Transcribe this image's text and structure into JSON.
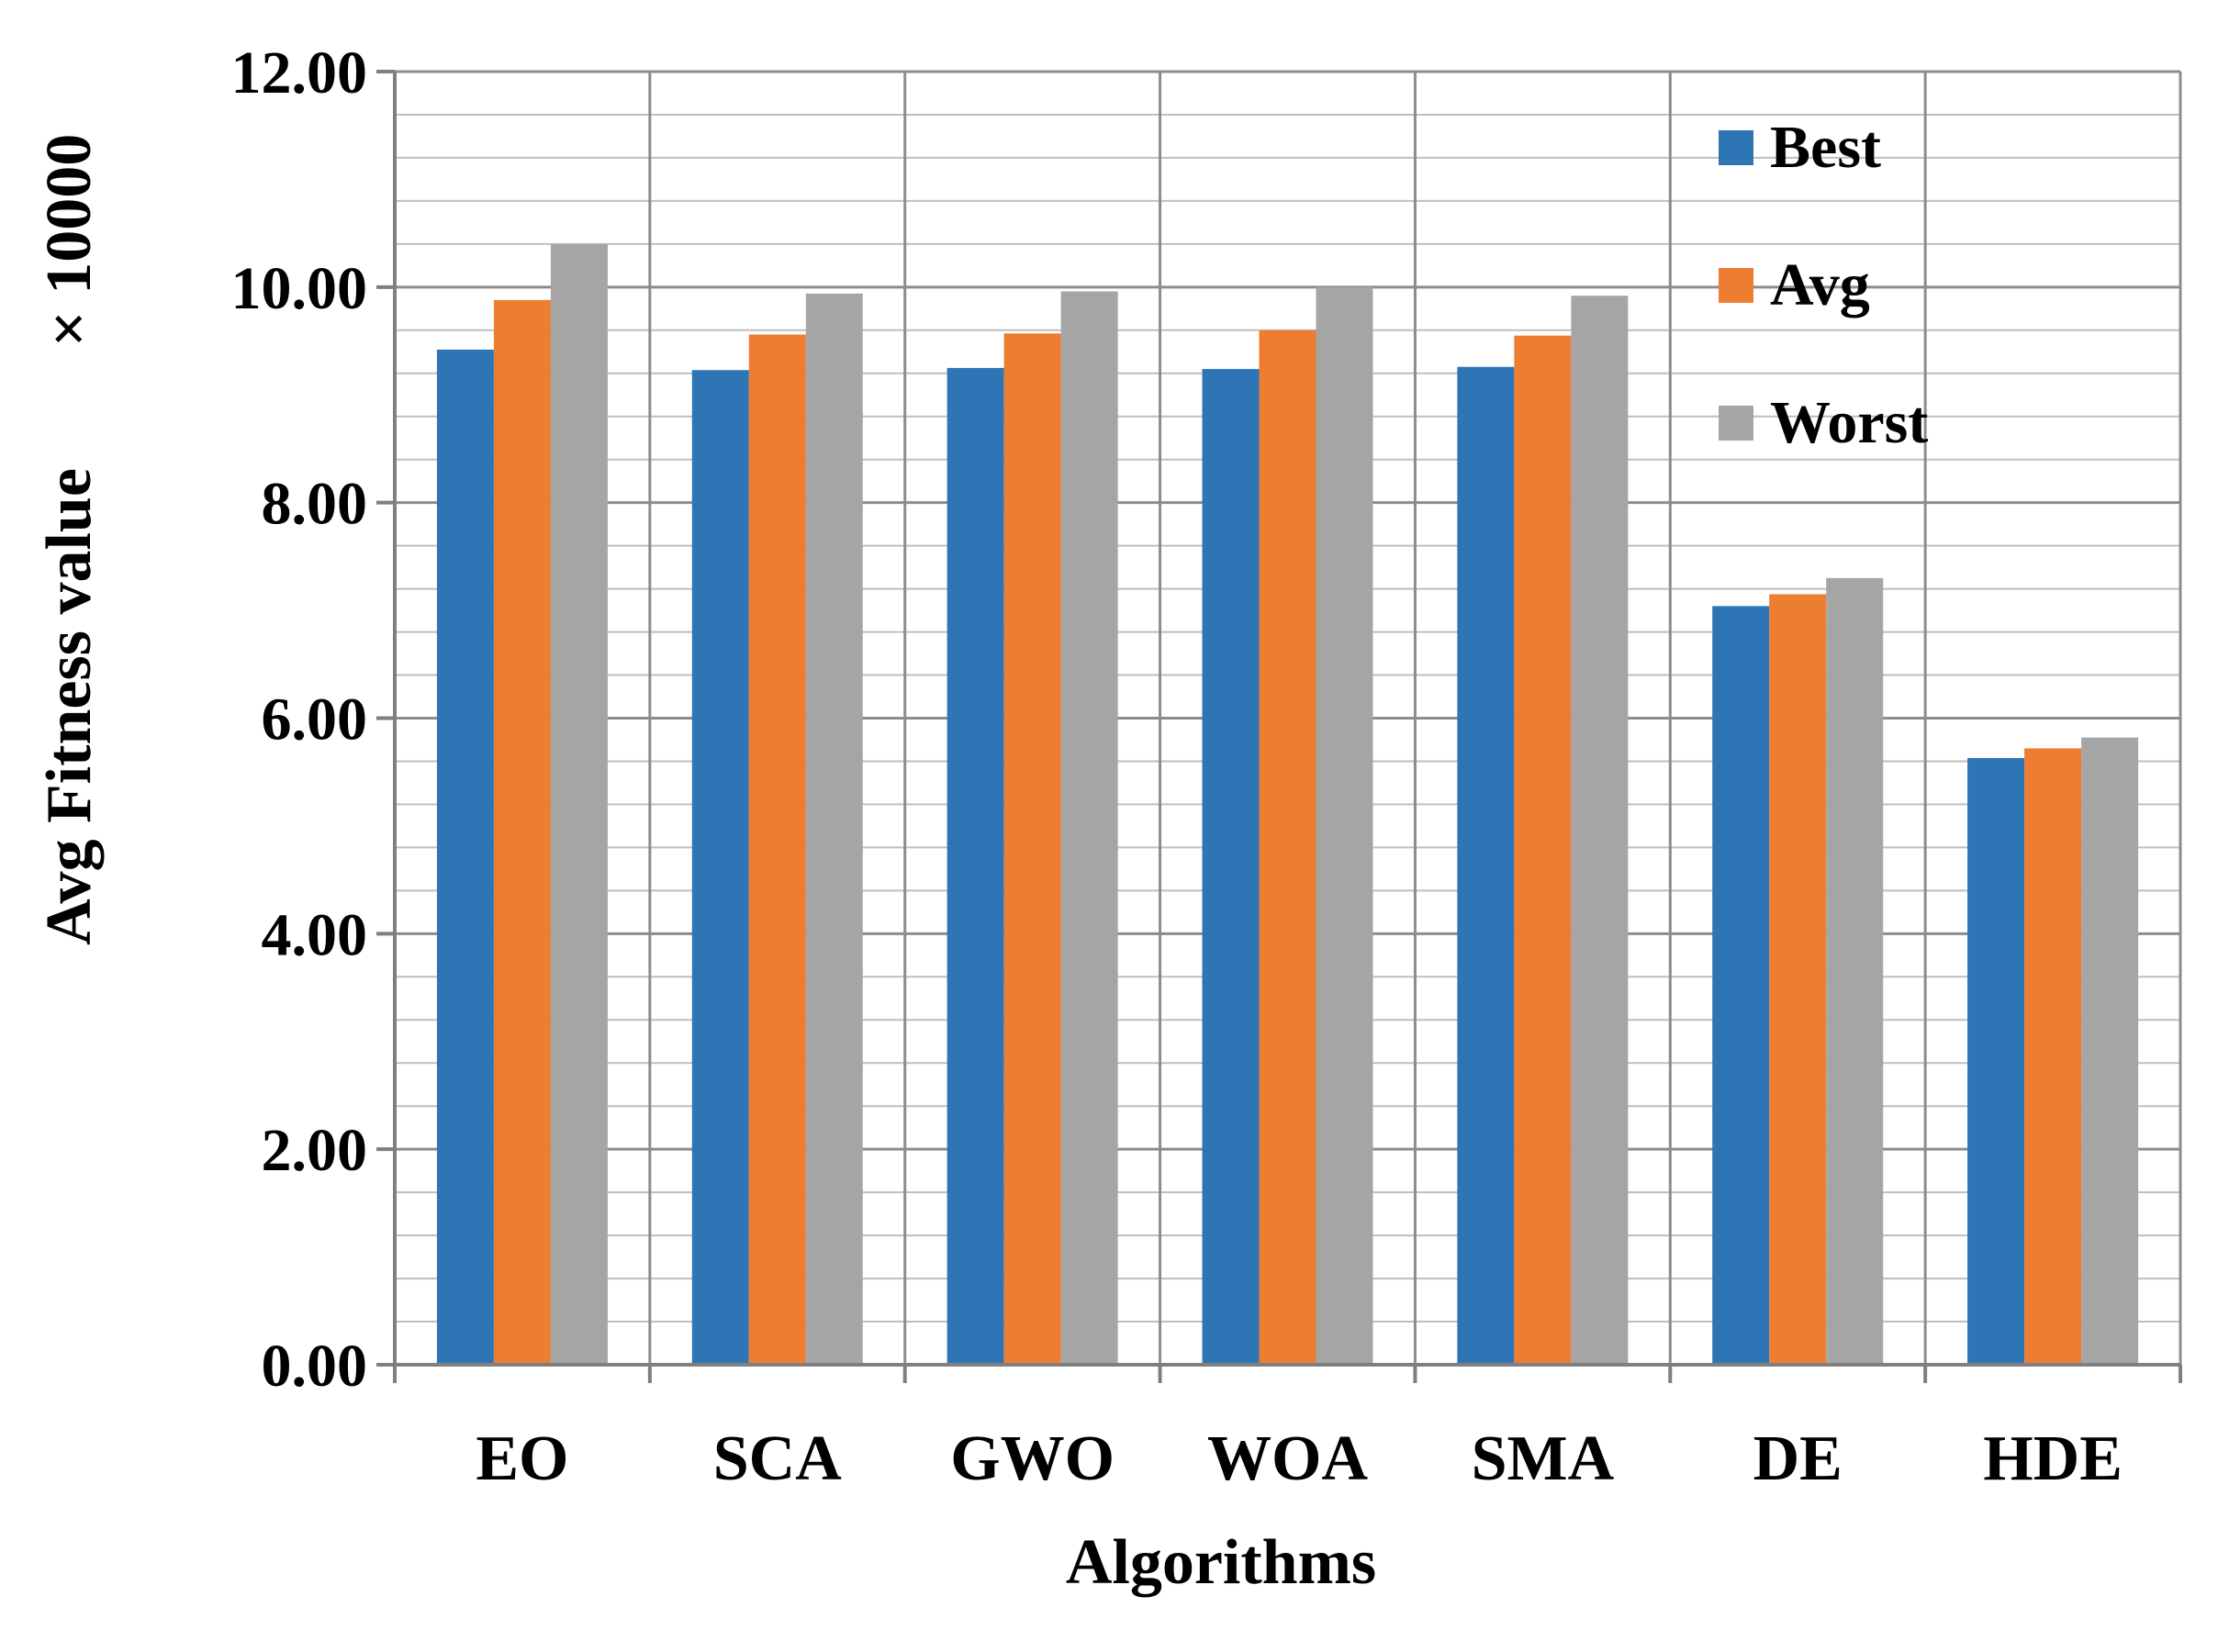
{
  "chart_data": {
    "type": "bar",
    "title": "",
    "xlabel": "Algorithms",
    "ylabel": "Avg Fitness value",
    "ylabel_multiplier": "× 10000",
    "ylim": [
      0,
      12
    ],
    "yticks": [
      "0.00",
      "2.00",
      "4.00",
      "6.00",
      "8.00",
      "10.00",
      "12.00"
    ],
    "categories": [
      "EO",
      "SCA",
      "GWO",
      "WOA",
      "SMA",
      "DE",
      "HDE"
    ],
    "series": [
      {
        "name": "Best",
        "color": "#2E75B6",
        "values": [
          9.42,
          9.23,
          9.25,
          9.24,
          9.26,
          7.04,
          5.63
        ]
      },
      {
        "name": "Avg",
        "color": "#ED7D31",
        "values": [
          9.88,
          9.56,
          9.57,
          9.6,
          9.55,
          7.15,
          5.72
        ]
      },
      {
        "name": "Worst",
        "color": "#A5A5A5",
        "values": [
          10.4,
          9.94,
          9.96,
          10.0,
          9.92,
          7.3,
          5.82
        ]
      }
    ],
    "grid": true,
    "legend_position": "top-right"
  }
}
